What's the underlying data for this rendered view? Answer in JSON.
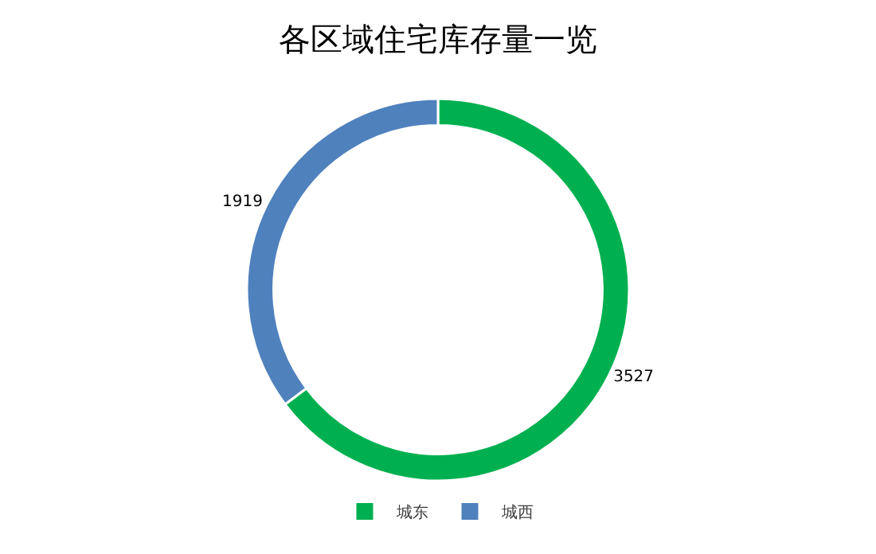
{
  "chart_data": {
    "type": "donut",
    "title": "各区域住宅库存量一览",
    "categories": [
      "城东",
      "城西"
    ],
    "values": [
      3527,
      1919
    ],
    "colors": [
      "#00b050",
      "#4f81bd"
    ],
    "data_labels": true,
    "legend": "bottom"
  }
}
